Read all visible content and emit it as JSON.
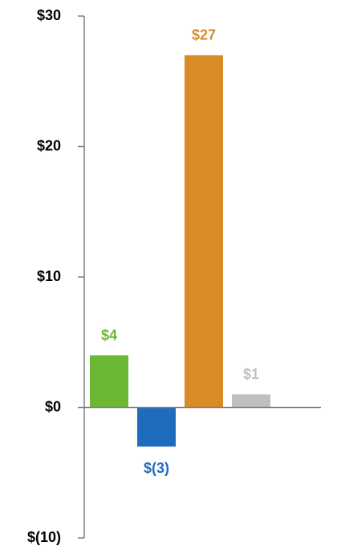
{
  "chart_data": {
    "type": "bar",
    "categories": [
      null,
      null,
      null,
      null
    ],
    "values": [
      4,
      -3,
      27,
      1
    ],
    "value_labels": [
      "$4",
      "$(3)",
      "$27",
      "$1"
    ],
    "colors": [
      "#6cb834",
      "#1f6cbc",
      "#d98b27",
      "#bfbfbf"
    ],
    "ylim": [
      -10,
      30
    ],
    "yticks": [
      {
        "value": -10,
        "label": "$(10)"
      },
      {
        "value": 0,
        "label": "$0"
      },
      {
        "value": 10,
        "label": "$10"
      },
      {
        "value": 20,
        "label": "$20"
      },
      {
        "value": 30,
        "label": "$30"
      }
    ],
    "grid": false
  }
}
